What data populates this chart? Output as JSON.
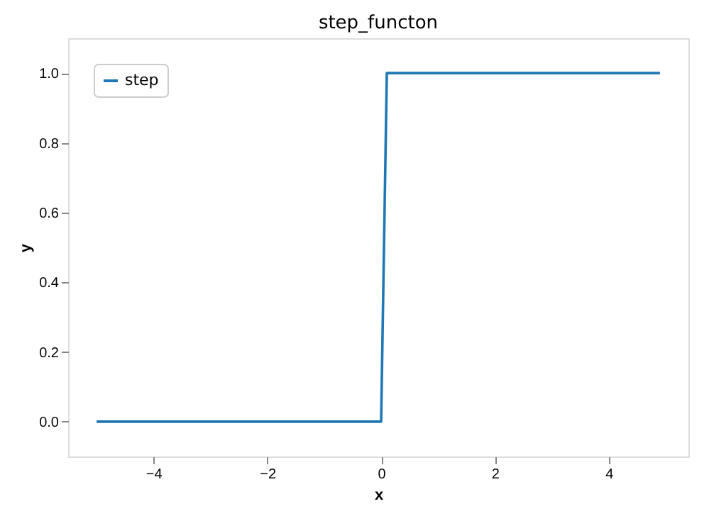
{
  "chart_data": {
    "type": "line",
    "title": "step_functon",
    "xlabel": "x",
    "ylabel": "y",
    "xlim": [
      -5.5,
      5.4
    ],
    "xticks": [
      -4,
      -2,
      0,
      2,
      4
    ],
    "ylim": [
      -0.1,
      1.1
    ],
    "yticks": [
      {
        "value": 0,
        "label": "0.0"
      },
      0.2,
      0.4,
      0.6,
      0.8,
      {
        "value": 1,
        "label": "1.0"
      }
    ],
    "grid": false,
    "legend": "top left",
    "marker": "none",
    "line_style": "solid",
    "series": [
      {
        "name": "step",
        "color": "#1f77b4",
        "x": [
          -5,
          0,
          0.1,
          4.9
        ],
        "values": [
          0,
          0,
          1,
          1
        ]
      }
    ]
  }
}
